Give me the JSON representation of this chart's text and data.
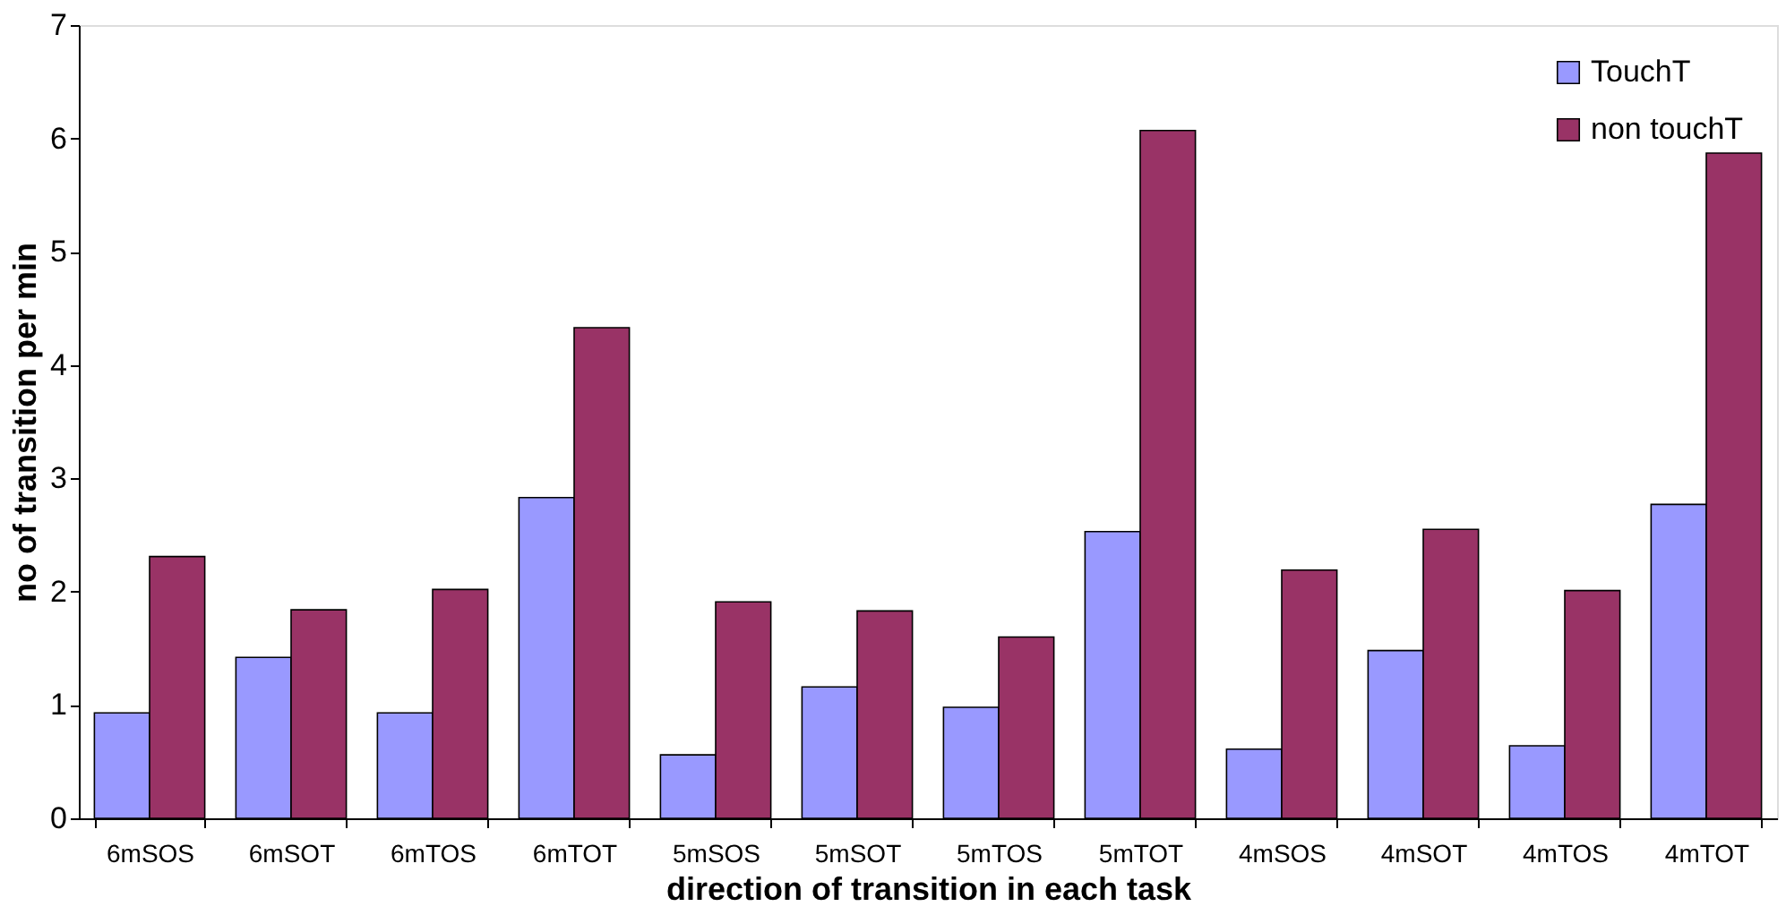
{
  "chart_data": {
    "type": "bar",
    "xlabel": "direction of transition in each task",
    "ylabel": "no of transition per min",
    "categories": [
      "6mSOS",
      "6mSOT",
      "6mTOS",
      "6mTOT",
      "5mSOS",
      "5mSOT",
      "5mTOS",
      "5mTOT",
      "4mSOS",
      "4mSOT",
      "4mTOS",
      "4mTOT"
    ],
    "series": [
      {
        "name": "TouchT",
        "color": "#9999ff",
        "values": [
          0.93,
          1.42,
          0.93,
          2.83,
          0.56,
          1.16,
          0.98,
          2.53,
          0.61,
          1.48,
          0.64,
          2.77
        ]
      },
      {
        "name": "non touchT",
        "color": "#993366",
        "values": [
          2.31,
          1.84,
          2.02,
          4.33,
          1.91,
          1.83,
          1.6,
          6.07,
          2.19,
          2.55,
          2.01,
          5.87
        ]
      }
    ],
    "ylim": [
      0,
      7
    ],
    "yticks": [
      0,
      1,
      2,
      3,
      4,
      5,
      6,
      7
    ],
    "grid": false,
    "legend": "top right"
  }
}
